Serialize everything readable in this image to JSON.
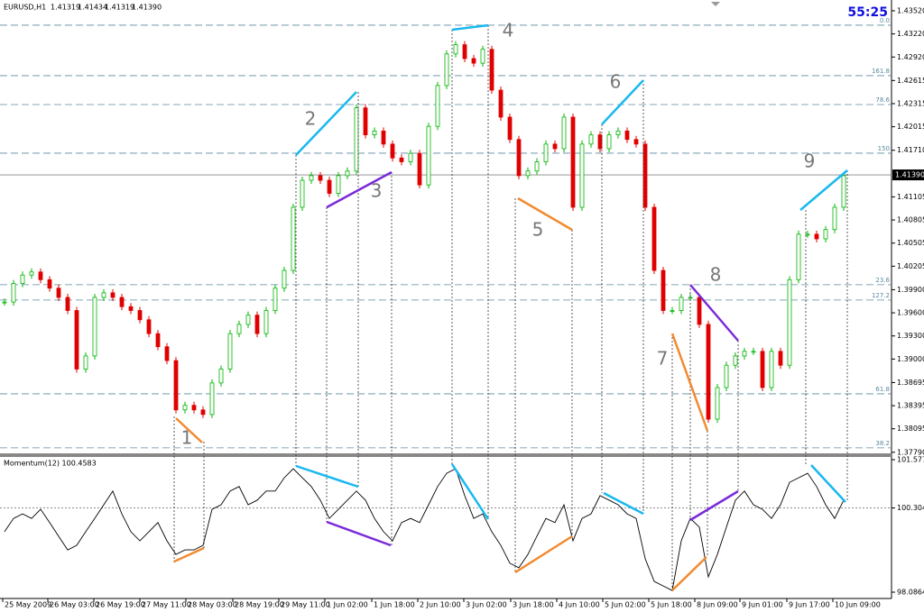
{
  "header": {
    "symbol": "EURUSD,H1",
    "quote": [
      "1.41319",
      "1.41434",
      "1.41319",
      "1.41390"
    ],
    "timer": "55:25"
  },
  "annotations": [
    "1",
    "2",
    "3",
    "4",
    "5",
    "6",
    "7",
    "8",
    "9"
  ],
  "chart_data": [
    {
      "type": "candlestick",
      "values": [
        1.3974,
        1.3998,
        1.4009,
        1.4013,
        1.4003,
        1.3992,
        1.398,
        1.3963,
        1.3887,
        1.3904,
        1.398,
        1.3986,
        1.398,
        1.3968,
        1.3963,
        1.3951,
        1.3933,
        1.3916,
        1.3898,
        1.3834,
        1.384,
        1.3834,
        1.3828,
        1.3869,
        1.3887,
        1.3933,
        1.3945,
        1.3957,
        1.3933,
        1.3963,
        1.3992,
        1.4015,
        1.4097,
        1.4132,
        1.4138,
        1.4132,
        1.4115,
        1.4138,
        1.4144,
        1.4226,
        1.4191,
        1.4196,
        1.4179,
        1.4161,
        1.4156,
        1.4167,
        1.4126,
        1.4202,
        1.4255,
        1.4296,
        1.4308,
        1.429,
        1.4284,
        1.4302,
        1.4249,
        1.4214,
        1.4185,
        1.4138,
        1.4144,
        1.4156,
        1.4179,
        1.4173,
        1.4214,
        1.4097,
        1.4179,
        1.4191,
        1.4173,
        1.4191,
        1.4196,
        1.4185,
        1.4179,
        1.4097,
        1.4015,
        1.3963,
        1.3963,
        1.398,
        1.398,
        1.3945,
        1.3822,
        1.3863,
        1.3892,
        1.3904,
        1.391,
        1.391,
        1.3863,
        1.391,
        1.3892,
        1.4003,
        1.4062,
        1.4062,
        1.4056,
        1.4068,
        1.4097,
        1.4138
      ],
      "up_color": "#00b400",
      "down_color": "#e00000",
      "ylim": [
        1.37776,
        1.4366
      ],
      "yticks": [
        {
          "value": 1.4352,
          "label": "1.43520"
        },
        {
          "value": 1.4322,
          "label": "1.43220"
        },
        {
          "value": 1.4292,
          "label": "1.42920"
        },
        {
          "value": 1.42615,
          "label": "1.42615"
        },
        {
          "value": 1.42315,
          "label": "1.42315"
        },
        {
          "value": 1.42015,
          "label": "1.42015"
        },
        {
          "value": 1.4171,
          "label": "1.41710"
        },
        {
          "value": 1.41105,
          "label": "1.41105"
        },
        {
          "value": 1.40805,
          "label": "1.40805"
        },
        {
          "value": 1.40505,
          "label": "1.40505"
        },
        {
          "value": 1.40205,
          "label": "1.40205"
        },
        {
          "value": 1.399,
          "label": "1.39900"
        },
        {
          "value": 1.396,
          "label": "1.39600"
        },
        {
          "value": 1.393,
          "label": "1.39300"
        },
        {
          "value": 1.39,
          "label": "1.39000"
        },
        {
          "value": 1.38695,
          "label": "1.38695"
        },
        {
          "value": 1.38395,
          "label": "1.38395"
        },
        {
          "value": 1.38095,
          "label": "1.38095"
        },
        {
          "value": 1.3779,
          "label": "1.37790"
        }
      ],
      "current_price": {
        "value": 1.4139,
        "label": "1.41390"
      },
      "fib_levels": [
        {
          "value": 1.43333,
          "label": "0.0"
        },
        {
          "value": 1.42678,
          "label": "161.8"
        },
        {
          "value": 1.42303,
          "label": "78.6"
        },
        {
          "value": 1.41672,
          "label": "150"
        },
        {
          "value": 1.39965,
          "label": "23.6"
        },
        {
          "value": 1.39766,
          "label": "127.2"
        },
        {
          "value": 1.38549,
          "label": "61.8"
        },
        {
          "value": 1.37848,
          "label": "38.2"
        }
      ],
      "xlim": [
        -0.5,
        98.3
      ],
      "xticks": [
        {
          "value": -0.2,
          "label": "25 May 2009"
        },
        {
          "value": 4.8,
          "label": "26 May 03:00"
        },
        {
          "value": 9.9,
          "label": "26 May 19:00"
        },
        {
          "value": 15,
          "label": "27 May 11:00"
        },
        {
          "value": 20.1,
          "label": "28 May 03:00"
        },
        {
          "value": 25.3,
          "label": "28 May 19:00"
        },
        {
          "value": 30.4,
          "label": "29 May 11:00"
        },
        {
          "value": 35.5,
          "label": "1 Jun 02:00"
        },
        {
          "value": 40.7,
          "label": "1 Jun 18:00"
        },
        {
          "value": 45.8,
          "label": "2 Jun 10:00"
        },
        {
          "value": 50.9,
          "label": "3 Jun 02:00"
        },
        {
          "value": 56.1,
          "label": "3 Jun 18:00"
        },
        {
          "value": 61.2,
          "label": "4 Jun 10:00"
        },
        {
          "value": 66.3,
          "label": "5 Jun 02:00"
        },
        {
          "value": 71.4,
          "label": "5 Jun 18:00"
        },
        {
          "value": 76.5,
          "label": "8 Jun 09:00"
        },
        {
          "value": 81.5,
          "label": "9 Jun 01:00"
        },
        {
          "value": 86.7,
          "label": "9 Jun 17:00"
        },
        {
          "value": 91.8,
          "label": "10 Jun 09:00"
        }
      ]
    },
    {
      "type": "line",
      "title": "Momentum(12) 100.4583",
      "color": "#000000",
      "values": [
        99.68,
        100.03,
        100.15,
        100.03,
        100.27,
        99.92,
        99.56,
        99.2,
        99.32,
        99.68,
        100.03,
        100.39,
        100.75,
        100.15,
        99.68,
        99.44,
        99.68,
        99.92,
        99.44,
        99.08,
        99.2,
        99.2,
        99.32,
        100.27,
        100.39,
        100.75,
        100.87,
        100.39,
        100.51,
        100.75,
        100.75,
        101.1,
        101.34,
        101.1,
        100.87,
        100.51,
        100.03,
        100.27,
        100.51,
        100.75,
        100.51,
        100.03,
        99.68,
        99.44,
        99.92,
        100.03,
        99.92,
        100.39,
        100.87,
        101.22,
        101.34,
        100.63,
        100.03,
        100.15,
        99.68,
        99.32,
        98.85,
        98.73,
        99.08,
        99.56,
        100.03,
        99.92,
        100.39,
        99.44,
        100.03,
        100.15,
        100.63,
        100.51,
        100.39,
        100.15,
        100.03,
        98.97,
        98.37,
        98.25,
        98.13,
        99.44,
        100.03,
        99.8,
        98.49,
        99.08,
        99.8,
        100.51,
        100.75,
        100.39,
        100.27,
        100.03,
        100.39,
        100.98,
        101.1,
        101.22,
        100.87,
        100.39,
        100.03,
        100.51
      ],
      "ylim": [
        97.944,
        101.625
      ],
      "yticks": [
        {
          "value": 101.5772,
          "label": "101.5772"
        },
        {
          "value": 100.3048,
          "label": "100.3048"
        },
        {
          "value": 98.0864,
          "label": "98.0864"
        }
      ]
    }
  ]
}
